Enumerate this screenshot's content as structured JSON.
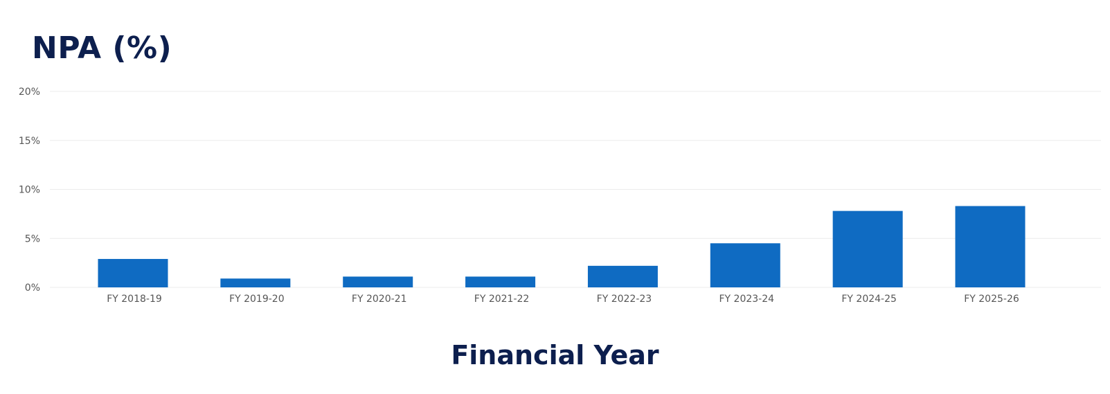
{
  "chart_data": {
    "type": "bar",
    "title": "NPA (%)",
    "xlabel": "Financial Year",
    "ylabel": "",
    "categories": [
      "FY 2018-19",
      "FY 2019-20",
      "FY 2020-21",
      "FY 2021-22",
      "FY 2022-23",
      "FY 2023-24",
      "FY 2024-25",
      "FY 2025-26"
    ],
    "values": [
      2.9,
      0.9,
      1.1,
      1.1,
      2.2,
      4.5,
      7.8,
      8.3
    ],
    "ylim": [
      0,
      20
    ],
    "yticks": [
      "0%",
      "5%",
      "10%",
      "15%",
      "20%"
    ],
    "grid": true,
    "legend": "none",
    "bar_color": "#0f6bc2",
    "grid_color": "#ebebeb",
    "title_color": "#0d1f4e"
  }
}
